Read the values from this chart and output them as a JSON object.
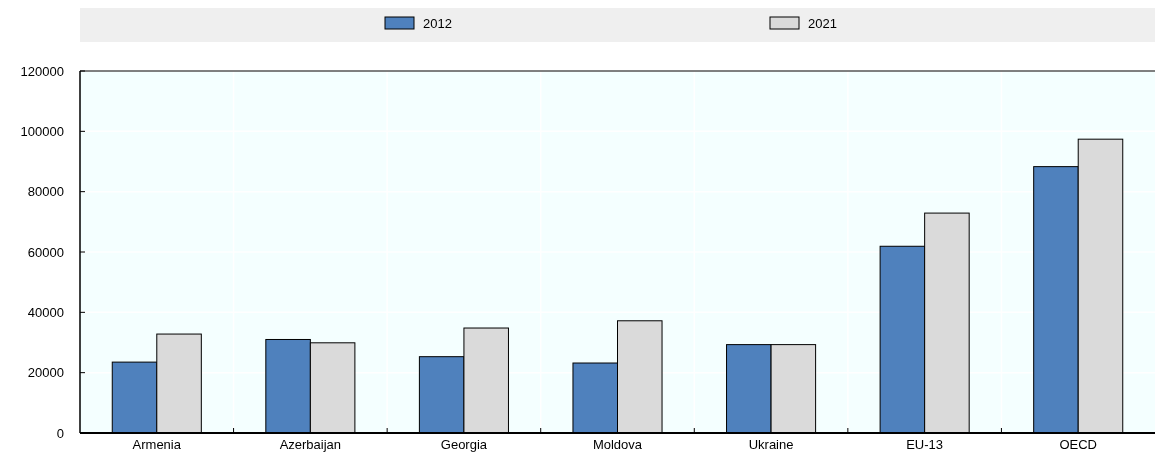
{
  "chart_data": {
    "type": "bar",
    "categories": [
      "Armenia",
      "Azerbaijan",
      "Georgia",
      "Moldova",
      "Ukraine",
      "EU-13",
      "OECD"
    ],
    "series": [
      {
        "name": "2012",
        "color": "#4f81bd",
        "values": [
          23500,
          31000,
          25300,
          23200,
          29300,
          61900,
          88300
        ]
      },
      {
        "name": "2021",
        "color": "#dadada",
        "values": [
          32800,
          29900,
          34800,
          37200,
          29300,
          72900,
          97400
        ]
      }
    ],
    "ylim": [
      0,
      120000
    ],
    "yticks": [
      0,
      20000,
      40000,
      60000,
      80000,
      100000,
      120000
    ],
    "grid": true,
    "legend": "top"
  }
}
